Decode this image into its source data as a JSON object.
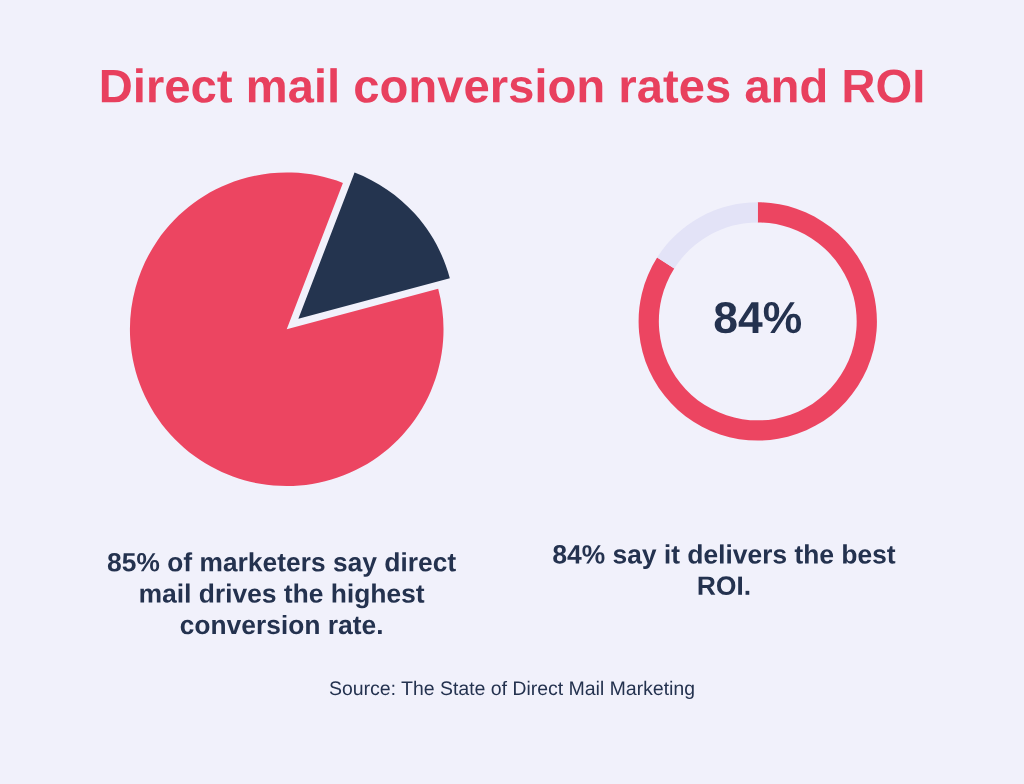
{
  "chart_data": [
    {
      "type": "pie",
      "title": "Direct mail conversion rates and ROI",
      "categories": [
        null,
        null
      ],
      "values": [
        85,
        15
      ],
      "colors": [
        "#ec4561",
        "#24344f"
      ],
      "annotations": [
        "85% of marketers say direct mail drives the highest conversion rate.",
        "Source: The State of Direct Mail Marketing"
      ]
    },
    {
      "type": "donut",
      "categories": [
        null,
        null
      ],
      "values": [
        84,
        16
      ],
      "colors": [
        "#ec4561",
        "#e3e3f7"
      ],
      "annotations": [
        "84%",
        "84% say it delivers the best ROI."
      ]
    }
  ]
}
